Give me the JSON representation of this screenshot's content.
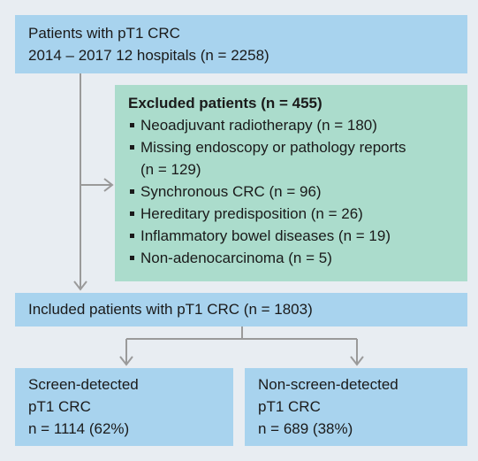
{
  "top_box": {
    "line1": "Patients with pT1 CRC",
    "line2": "2014 – 2017 12 hospitals (n = 2258)"
  },
  "excluded_box": {
    "title": "Excluded patients (n = 455)",
    "items": [
      {
        "text": "Neoadjuvant radiotherapy (n = 180)",
        "cont": ""
      },
      {
        "text": "Missing endoscopy or pathology reports",
        "cont": "(n = 129)"
      },
      {
        "text": "Synchronous CRC (n = 96)",
        "cont": ""
      },
      {
        "text": "Hereditary predisposition (n = 26)",
        "cont": ""
      },
      {
        "text": "Inflammatory bowel diseases (n = 19)",
        "cont": ""
      },
      {
        "text": "Non-adenocarcinoma (n = 5)",
        "cont": ""
      }
    ]
  },
  "included_box": {
    "text": "Included patients with pT1 CRC (n = 1803)"
  },
  "screen_box": {
    "line1": "Screen-detected",
    "line2": "pT1 CRC",
    "line3": "n = 1114 (62%)"
  },
  "nonscreen_box": {
    "line1": "Non-screen-detected",
    "line2": "pT1 CRC",
    "line3": "n = 689 (38%)"
  },
  "colors": {
    "blue_box": "#a8d3ee",
    "green_box": "#abdccc",
    "background": "#e8edf2",
    "connector": "#9a9a9a"
  }
}
